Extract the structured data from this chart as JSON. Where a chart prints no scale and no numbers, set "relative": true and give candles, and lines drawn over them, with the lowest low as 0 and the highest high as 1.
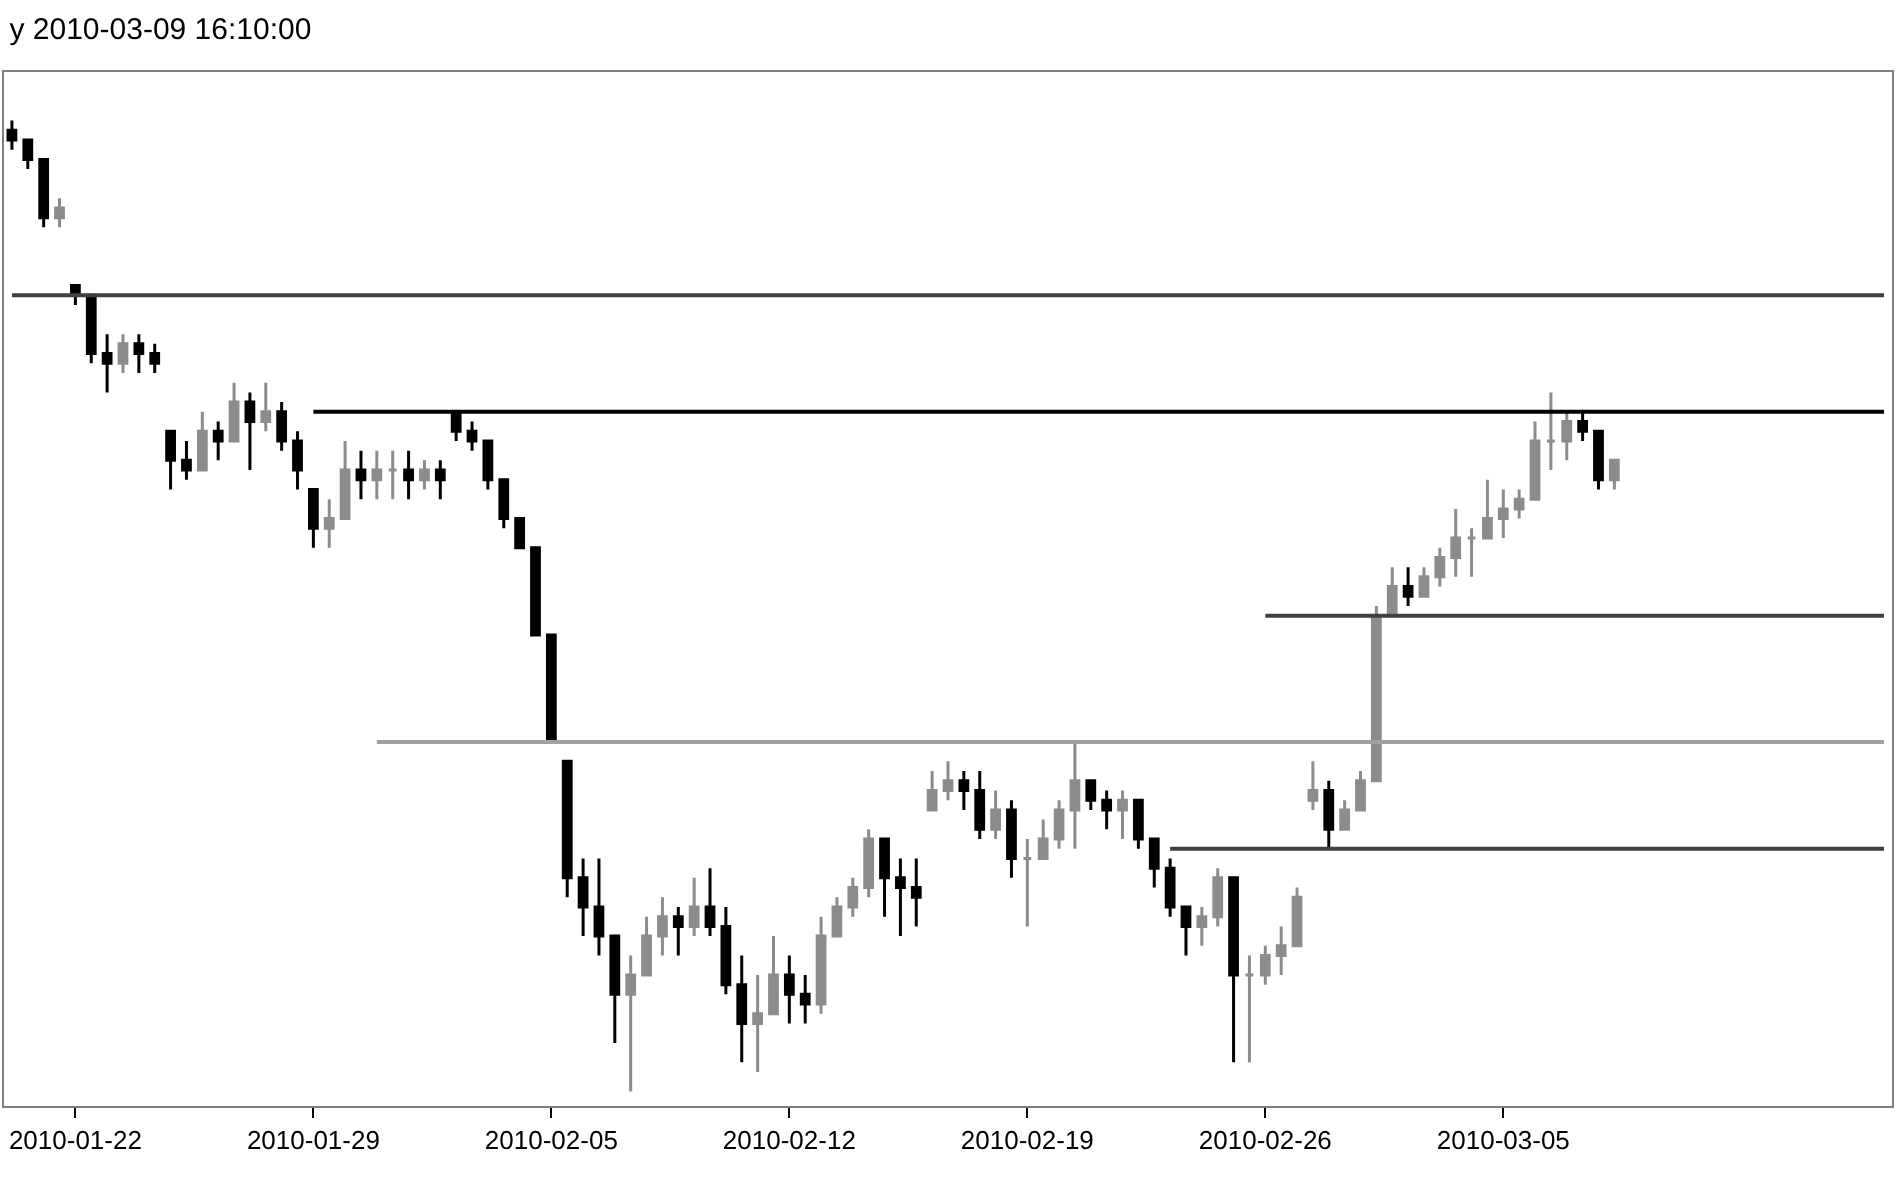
{
  "chart_data": {
    "type": "candlestick",
    "title": "y 2010-03-09 16:10:00",
    "relative": true,
    "categories": [
      null,
      null,
      null,
      null,
      "2010-01-22",
      null,
      null,
      null,
      null,
      null,
      null,
      null,
      null,
      null,
      null,
      null,
      null,
      null,
      null,
      "2010-01-29",
      null,
      null,
      null,
      null,
      null,
      null,
      null,
      null,
      null,
      null,
      null,
      null,
      null,
      null,
      "2010-02-05",
      null,
      null,
      null,
      null,
      null,
      null,
      null,
      null,
      null,
      null,
      null,
      null,
      null,
      null,
      "2010-02-12",
      null,
      null,
      null,
      null,
      null,
      null,
      null,
      null,
      null,
      null,
      null,
      null,
      null,
      null,
      "2010-02-19",
      null,
      null,
      null,
      null,
      null,
      null,
      null,
      null,
      null,
      null,
      null,
      null,
      null,
      null,
      "2010-02-26",
      null,
      null,
      null,
      null,
      null,
      null,
      null,
      null,
      null,
      null,
      null,
      null,
      null,
      null,
      "2010-03-05",
      null,
      null,
      null,
      null,
      null,
      null,
      null,
      null,
      null,
      null,
      null,
      null,
      null,
      null,
      null,
      null,
      null,
      null,
      null,
      null,
      null,
      null,
      null,
      null
    ],
    "colors": [
      "#000000",
      "#000000",
      "#000000",
      "#8c8c8c",
      "#000000",
      "#000000",
      "#000000",
      "#8c8c8c",
      "#000000",
      "#000000",
      "#000000",
      "#000000",
      "#8c8c8c",
      "#000000",
      "#8c8c8c",
      "#000000",
      "#8c8c8c",
      "#000000",
      "#000000",
      "#000000",
      "#8c8c8c",
      "#8c8c8c",
      "#000000",
      "#8c8c8c",
      "#8c8c8c",
      "#000000",
      "#8c8c8c",
      "#000000",
      "#000000",
      "#000000",
      "#000000",
      "#000000",
      "#000000",
      "#000000",
      "#000000",
      "#000000",
      "#000000",
      "#000000",
      "#000000",
      "#8c8c8c",
      "#8c8c8c",
      "#8c8c8c",
      "#000000",
      "#8c8c8c",
      "#000000",
      "#000000",
      "#000000",
      "#8c8c8c",
      "#8c8c8c",
      "#000000",
      "#000000",
      "#8c8c8c",
      "#8c8c8c",
      "#8c8c8c",
      "#8c8c8c",
      "#000000",
      "#000000",
      "#000000",
      "#8c8c8c",
      "#8c8c8c",
      "#000000",
      "#000000",
      "#8c8c8c",
      "#000000",
      "#8c8c8c",
      "#8c8c8c",
      "#8c8c8c",
      "#8c8c8c",
      "#000000",
      "#000000",
      "#8c8c8c",
      "#000000",
      "#000000",
      "#000000",
      "#000000",
      "#8c8c8c",
      "#8c8c8c",
      "#000000",
      "#8c8c8c",
      "#8c8c8c",
      "#8c8c8c",
      "#8c8c8c",
      "#8c8c8c",
      "#000000",
      "#8c8c8c",
      "#8c8c8c",
      "#8c8c8c",
      "#8c8c8c",
      "#000000",
      "#8c8c8c",
      "#8c8c8c",
      "#8c8c8c",
      "#8c8c8c",
      "#8c8c8c",
      "#8c8c8c",
      "#8c8c8c",
      "#8c8c8c",
      "#8c8c8c",
      "#8c8c8c",
      "#000000",
      "#000000",
      "#8c8c8c",
      null,
      null,
      null,
      null,
      null,
      null,
      null,
      null,
      null,
      null,
      null,
      null,
      null,
      null,
      null,
      null,
      null
    ],
    "ohlc": [
      [
        0.99,
        1.0,
        0.97,
        0.98
      ],
      [
        0.98,
        0.98,
        0.95,
        0.96
      ],
      [
        0.96,
        0.96,
        0.89,
        0.9
      ],
      [
        0.9,
        0.92,
        0.89,
        0.91
      ],
      [
        0.83,
        0.83,
        0.81,
        0.82
      ],
      [
        0.82,
        0.82,
        0.75,
        0.76
      ],
      [
        0.76,
        0.78,
        0.72,
        0.75
      ],
      [
        0.75,
        0.78,
        0.74,
        0.77
      ],
      [
        0.77,
        0.78,
        0.74,
        0.76
      ],
      [
        0.76,
        0.77,
        0.74,
        0.75
      ],
      [
        0.68,
        0.68,
        0.62,
        0.65
      ],
      [
        0.65,
        0.67,
        0.63,
        0.64
      ],
      [
        0.64,
        0.7,
        0.64,
        0.68
      ],
      [
        0.68,
        0.69,
        0.65,
        0.67
      ],
      [
        0.67,
        0.73,
        0.67,
        0.71
      ],
      [
        0.71,
        0.72,
        0.64,
        0.69
      ],
      [
        0.69,
        0.73,
        0.68,
        0.7
      ],
      [
        0.7,
        0.71,
        0.66,
        0.67
      ],
      [
        0.67,
        0.68,
        0.62,
        0.64
      ],
      [
        0.62,
        0.62,
        0.56,
        0.58
      ],
      [
        0.58,
        0.61,
        0.56,
        0.59
      ],
      [
        0.59,
        0.67,
        0.59,
        0.64
      ],
      [
        0.64,
        0.66,
        0.61,
        0.63
      ],
      [
        0.63,
        0.66,
        0.61,
        0.64
      ],
      [
        0.64,
        0.66,
        0.61,
        0.64
      ],
      [
        0.64,
        0.66,
        0.61,
        0.63
      ],
      [
        0.63,
        0.65,
        0.62,
        0.64
      ],
      [
        0.64,
        0.65,
        0.61,
        0.63
      ],
      [
        0.7,
        0.7,
        0.67,
        0.68
      ],
      [
        0.68,
        0.69,
        0.66,
        0.67
      ],
      [
        0.67,
        0.67,
        0.62,
        0.63
      ],
      [
        0.63,
        0.63,
        0.58,
        0.59
      ],
      [
        0.59,
        0.59,
        0.56,
        0.56
      ],
      [
        0.56,
        0.56,
        0.47,
        0.47
      ],
      [
        0.47,
        0.47,
        0.36,
        0.36
      ],
      [
        0.34,
        0.34,
        0.2,
        0.22
      ],
      [
        0.22,
        0.24,
        0.16,
        0.19
      ],
      [
        0.19,
        0.24,
        0.14,
        0.16
      ],
      [
        0.16,
        0.16,
        0.05,
        0.1
      ],
      [
        0.1,
        0.14,
        0.0,
        0.12
      ],
      [
        0.12,
        0.18,
        0.12,
        0.16
      ],
      [
        0.16,
        0.2,
        0.14,
        0.18
      ],
      [
        0.18,
        0.19,
        0.14,
        0.17
      ],
      [
        0.17,
        0.22,
        0.16,
        0.19
      ],
      [
        0.19,
        0.23,
        0.16,
        0.17
      ],
      [
        0.17,
        0.19,
        0.1,
        0.11
      ],
      [
        0.11,
        0.14,
        0.03,
        0.07
      ],
      [
        0.07,
        0.12,
        0.02,
        0.08
      ],
      [
        0.08,
        0.16,
        0.08,
        0.12
      ],
      [
        0.12,
        0.14,
        0.07,
        0.1
      ],
      [
        0.1,
        0.12,
        0.07,
        0.09
      ],
      [
        0.09,
        0.18,
        0.08,
        0.16
      ],
      [
        0.16,
        0.2,
        0.16,
        0.19
      ],
      [
        0.19,
        0.22,
        0.18,
        0.21
      ],
      [
        0.21,
        0.27,
        0.2,
        0.26
      ],
      [
        0.26,
        0.26,
        0.18,
        0.22
      ],
      [
        0.22,
        0.24,
        0.16,
        0.21
      ],
      [
        0.21,
        0.24,
        0.17,
        0.2
      ],
      [
        0.29,
        0.33,
        0.29,
        0.31
      ],
      [
        0.31,
        0.34,
        0.3,
        0.32
      ],
      [
        0.32,
        0.33,
        0.29,
        0.31
      ],
      [
        0.31,
        0.33,
        0.26,
        0.27
      ],
      [
        0.27,
        0.31,
        0.26,
        0.29
      ],
      [
        0.29,
        0.3,
        0.22,
        0.24
      ],
      [
        0.24,
        0.26,
        0.17,
        0.24
      ],
      [
        0.24,
        0.28,
        0.24,
        0.26
      ],
      [
        0.26,
        0.3,
        0.25,
        0.29
      ],
      [
        0.29,
        0.36,
        0.25,
        0.32
      ],
      [
        0.32,
        0.32,
        0.29,
        0.3
      ],
      [
        0.3,
        0.31,
        0.27,
        0.29
      ],
      [
        0.29,
        0.31,
        0.26,
        0.3
      ],
      [
        0.3,
        0.3,
        0.25,
        0.26
      ],
      [
        0.26,
        0.26,
        0.21,
        0.23
      ],
      [
        0.23,
        0.24,
        0.18,
        0.19
      ],
      [
        0.19,
        0.19,
        0.14,
        0.17
      ],
      [
        0.17,
        0.19,
        0.15,
        0.18
      ],
      [
        0.18,
        0.23,
        0.17,
        0.22
      ],
      [
        0.22,
        0.22,
        0.03,
        0.12
      ],
      [
        0.12,
        0.14,
        0.03,
        0.12
      ],
      [
        0.12,
        0.15,
        0.11,
        0.14
      ],
      [
        0.14,
        0.17,
        0.12,
        0.15
      ],
      [
        0.15,
        0.21,
        0.15,
        0.2
      ],
      [
        0.3,
        0.34,
        0.29,
        0.31
      ],
      [
        0.31,
        0.32,
        0.25,
        0.27
      ],
      [
        0.27,
        0.3,
        0.27,
        0.29
      ],
      [
        0.29,
        0.33,
        0.29,
        0.32
      ],
      [
        0.32,
        0.5,
        0.32,
        0.49
      ],
      [
        0.49,
        0.54,
        0.49,
        0.52
      ],
      [
        0.52,
        0.54,
        0.5,
        0.51
      ],
      [
        0.51,
        0.54,
        0.51,
        0.53
      ],
      [
        0.53,
        0.56,
        0.52,
        0.55
      ],
      [
        0.55,
        0.6,
        0.53,
        0.57
      ],
      [
        0.57,
        0.58,
        0.53,
        0.57
      ],
      [
        0.57,
        0.63,
        0.57,
        0.59
      ],
      [
        0.59,
        0.62,
        0.57,
        0.6
      ],
      [
        0.6,
        0.62,
        0.59,
        0.61
      ],
      [
        0.61,
        0.69,
        0.61,
        0.67
      ],
      [
        0.67,
        0.72,
        0.64,
        0.67
      ],
      [
        0.67,
        0.7,
        0.65,
        0.69
      ],
      [
        0.69,
        0.7,
        0.67,
        0.68
      ],
      [
        0.68,
        0.68,
        0.62,
        0.63
      ],
      [
        0.63,
        0.65,
        0.62,
        0.65
      ],
      null,
      null,
      null,
      null,
      null,
      null,
      null,
      null,
      null,
      null,
      null,
      null,
      null,
      null,
      null,
      null,
      null
    ],
    "series": [
      {
        "type": "line",
        "color": "#404040",
        "values": [
          0.82,
          0.82,
          0.82,
          0.82,
          0.82,
          0.82,
          0.82,
          0.82,
          0.82,
          0.82,
          0.82,
          0.82,
          0.82,
          0.82,
          0.82,
          0.82,
          0.82,
          0.82,
          0.82,
          0.82,
          0.82,
          0.82,
          0.82,
          0.82,
          0.82,
          0.82,
          0.82,
          0.82,
          0.82,
          0.82,
          0.82,
          0.82,
          0.82,
          0.82,
          0.82,
          0.82,
          0.82,
          0.82,
          0.82,
          0.82,
          0.82,
          0.82,
          0.82,
          0.82,
          0.82,
          0.82,
          0.82,
          0.82,
          0.82,
          0.82,
          0.82,
          0.82,
          0.82,
          0.82,
          0.82,
          0.82,
          0.82,
          0.82,
          0.82,
          0.82,
          0.82,
          0.82,
          0.82,
          0.82,
          0.82,
          0.82,
          0.82,
          0.82,
          0.82,
          0.82,
          0.82,
          0.82,
          0.82,
          0.82,
          0.82,
          0.82,
          0.82,
          0.82,
          0.82,
          0.82,
          0.82,
          0.82,
          0.82,
          0.82,
          0.82,
          0.82,
          0.82,
          0.82,
          0.82,
          0.82,
          0.82,
          0.82,
          0.82,
          0.82,
          0.82,
          0.82,
          0.82,
          0.82,
          0.82,
          0.82,
          0.82,
          0.82,
          0.82,
          0.82,
          0.82,
          0.82,
          0.82,
          0.82,
          0.82,
          0.82,
          0.82,
          0.82,
          0.82,
          0.82,
          0.82,
          0.82,
          0.82,
          0.82,
          0.82
        ]
      },
      {
        "type": "line",
        "color": "#000000",
        "values": [
          null,
          null,
          null,
          null,
          null,
          null,
          null,
          null,
          null,
          null,
          null,
          null,
          null,
          null,
          null,
          null,
          null,
          null,
          null,
          0.7,
          0.7,
          0.7,
          0.7,
          0.7,
          0.7,
          0.7,
          0.7,
          0.7,
          0.7,
          0.7,
          0.7,
          0.7,
          0.7,
          0.7,
          0.7,
          0.7,
          0.7,
          0.7,
          0.7,
          0.7,
          0.7,
          0.7,
          0.7,
          0.7,
          0.7,
          0.7,
          0.7,
          0.7,
          0.7,
          0.7,
          0.7,
          0.7,
          0.7,
          0.7,
          0.7,
          0.7,
          0.7,
          0.7,
          0.7,
          0.7,
          0.7,
          0.7,
          0.7,
          0.7,
          0.7,
          0.7,
          0.7,
          0.7,
          0.7,
          0.7,
          0.7,
          0.7,
          0.7,
          0.7,
          0.7,
          0.7,
          0.7,
          0.7,
          0.7,
          0.7,
          0.7,
          0.7,
          0.7,
          0.7,
          0.7,
          0.7,
          0.7,
          0.7,
          0.7,
          0.7,
          0.7,
          0.7,
          0.7,
          0.7,
          0.7,
          0.7,
          0.7,
          0.7,
          0.7,
          0.7,
          0.7,
          0.7,
          0.7,
          0.7,
          0.7,
          0.7,
          0.7,
          0.7,
          0.7,
          0.7,
          0.7,
          0.7,
          0.7,
          0.7,
          0.7,
          0.7,
          0.7,
          0.7,
          0.7
        ]
      },
      {
        "type": "line",
        "color": "#404040",
        "values": [
          null,
          null,
          null,
          null,
          null,
          null,
          null,
          null,
          null,
          null,
          null,
          null,
          null,
          null,
          null,
          null,
          null,
          null,
          null,
          null,
          null,
          null,
          null,
          null,
          null,
          null,
          null,
          null,
          null,
          null,
          null,
          null,
          null,
          null,
          null,
          null,
          null,
          null,
          null,
          null,
          null,
          null,
          null,
          null,
          null,
          null,
          null,
          null,
          null,
          null,
          null,
          null,
          null,
          null,
          null,
          null,
          null,
          null,
          null,
          null,
          null,
          null,
          null,
          null,
          null,
          null,
          null,
          null,
          null,
          null,
          null,
          null,
          null,
          null,
          null,
          null,
          null,
          null,
          null,
          0.49,
          0.49,
          0.49,
          0.49,
          0.49,
          0.49,
          0.49,
          0.49,
          0.49,
          0.49,
          0.49,
          0.49,
          0.49,
          0.49,
          0.49,
          0.49,
          0.49,
          0.49,
          0.49,
          0.49,
          0.49,
          0.49,
          0.49,
          0.49,
          0.49,
          0.49,
          0.49,
          0.49,
          0.49,
          0.49,
          0.49,
          0.49,
          0.49,
          0.49,
          0.49,
          0.49,
          0.49,
          0.49,
          0.49,
          0.49
        ]
      },
      {
        "type": "line",
        "color": "#a0a0a0",
        "values": [
          null,
          null,
          null,
          null,
          null,
          null,
          null,
          null,
          null,
          null,
          null,
          null,
          null,
          null,
          null,
          null,
          null,
          null,
          null,
          null,
          null,
          null,
          null,
          0.36,
          0.36,
          0.36,
          0.36,
          0.36,
          0.36,
          0.36,
          0.36,
          0.36,
          0.36,
          0.36,
          0.36,
          0.36,
          0.36,
          0.36,
          0.36,
          0.36,
          0.36,
          0.36,
          0.36,
          0.36,
          0.36,
          0.36,
          0.36,
          0.36,
          0.36,
          0.36,
          0.36,
          0.36,
          0.36,
          0.36,
          0.36,
          0.36,
          0.36,
          0.36,
          0.36,
          0.36,
          0.36,
          0.36,
          0.36,
          0.36,
          0.36,
          0.36,
          0.36,
          0.36,
          0.36,
          0.36,
          0.36,
          0.36,
          0.36,
          0.36,
          0.36,
          0.36,
          0.36,
          0.36,
          0.36,
          0.36,
          0.36,
          0.36,
          0.36,
          0.36,
          0.36,
          0.36,
          0.36,
          0.36,
          0.36,
          0.36,
          0.36,
          0.36,
          0.36,
          0.36,
          0.36,
          0.36,
          0.36,
          0.36,
          0.36,
          0.36,
          0.36,
          0.36,
          0.36,
          0.36,
          0.36,
          0.36,
          0.36,
          0.36,
          0.36,
          0.36,
          0.36,
          0.36,
          0.36,
          0.36,
          0.36,
          0.36,
          0.36,
          0.36,
          0.36
        ]
      },
      {
        "type": "line",
        "color": "#404040",
        "values": [
          null,
          null,
          null,
          null,
          null,
          null,
          null,
          null,
          null,
          null,
          null,
          null,
          null,
          null,
          null,
          null,
          null,
          null,
          null,
          null,
          null,
          null,
          null,
          null,
          null,
          null,
          null,
          null,
          null,
          null,
          null,
          null,
          null,
          null,
          null,
          null,
          null,
          null,
          null,
          null,
          null,
          null,
          null,
          null,
          null,
          null,
          null,
          null,
          null,
          null,
          null,
          null,
          null,
          null,
          null,
          null,
          null,
          null,
          null,
          null,
          null,
          null,
          null,
          null,
          null,
          null,
          null,
          null,
          null,
          null,
          null,
          null,
          null,
          0.25,
          0.25,
          0.25,
          0.25,
          0.25,
          0.25,
          0.25,
          0.25,
          0.25,
          0.25,
          0.25,
          0.25,
          0.25,
          0.25,
          0.25,
          0.25,
          0.25,
          0.25,
          0.25,
          0.25,
          0.25,
          0.25,
          0.25,
          0.25,
          0.25,
          0.25,
          0.25,
          0.25,
          0.25,
          0.25,
          0.25,
          0.25,
          0.25,
          0.25,
          0.25,
          0.25,
          0.25,
          0.25,
          0.25,
          0.25,
          0.25,
          0.25,
          0.25,
          0.25,
          0.25,
          0.25
        ]
      }
    ]
  }
}
